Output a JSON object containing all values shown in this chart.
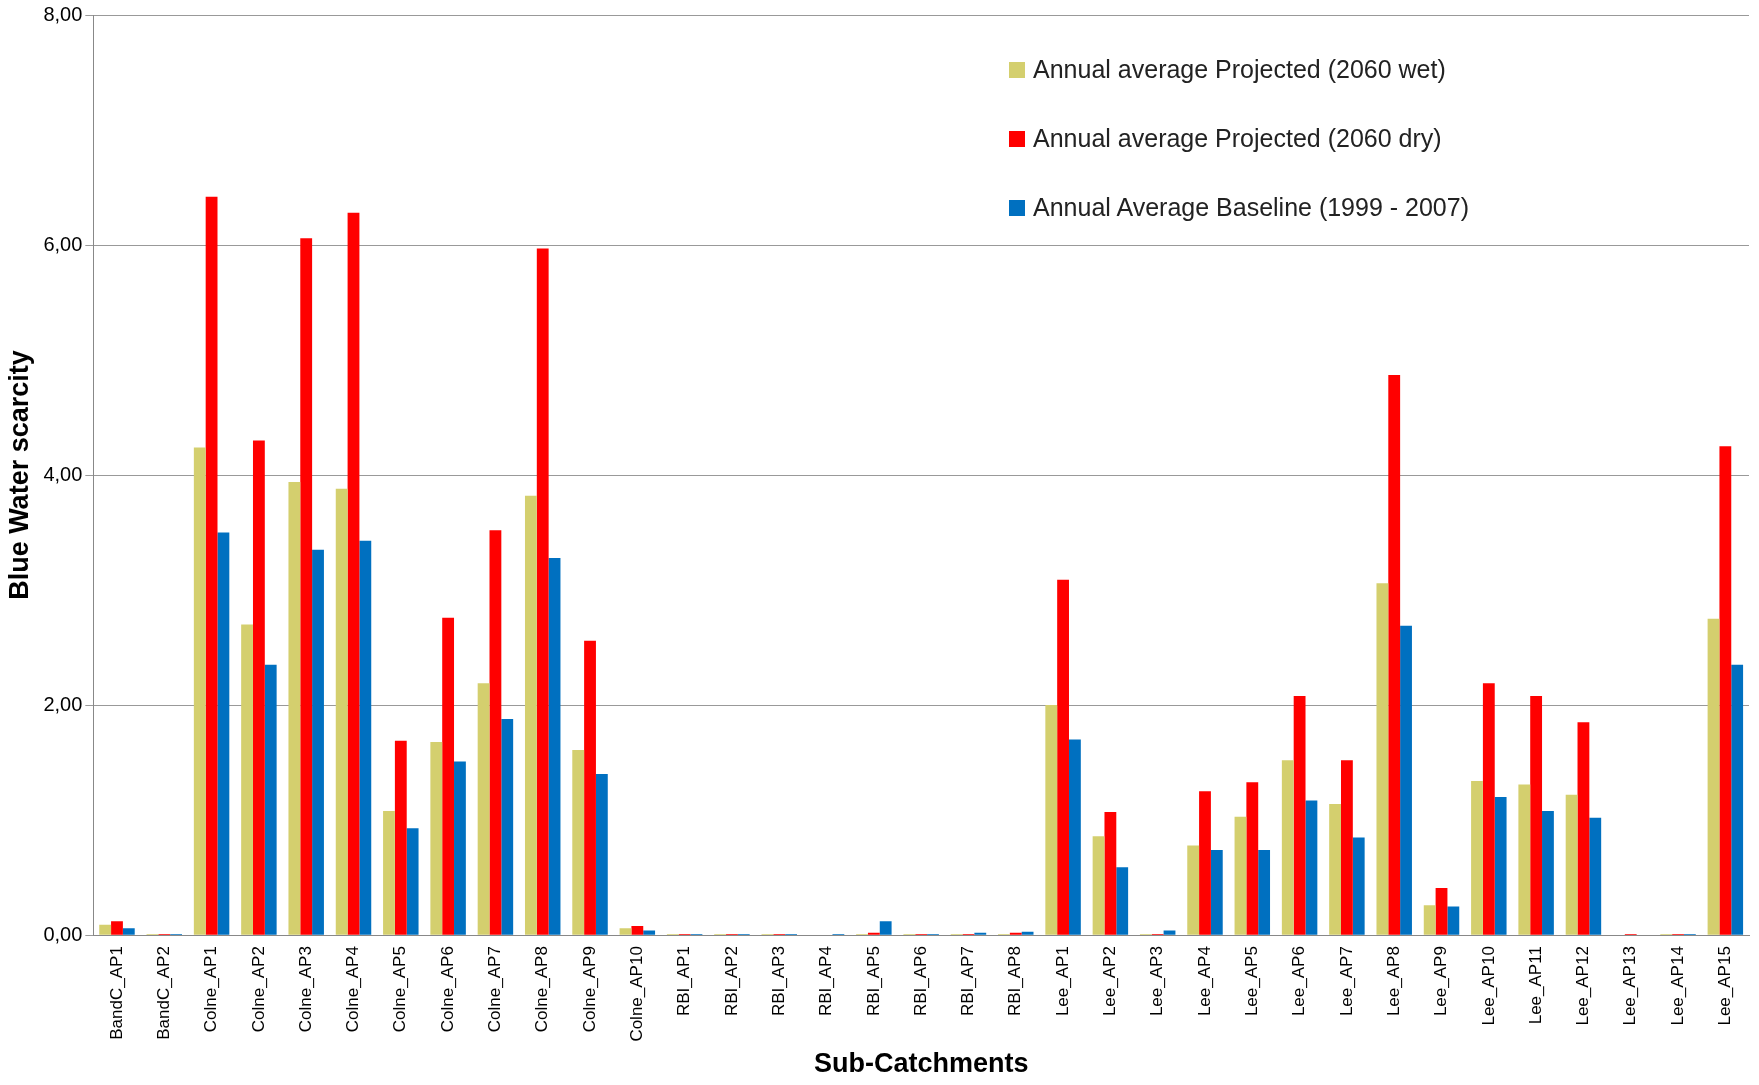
{
  "chart_data": {
    "type": "bar",
    "xlabel": "Sub-Catchments",
    "ylabel": "Blue Water scarcity",
    "categories": [
      "BandC_AP1",
      "BandC_AP2",
      "Colne_AP1",
      "Colne_AP2",
      "Colne_AP3",
      "Colne_AP4",
      "Colne_AP5",
      "Colne_AP6",
      "Colne_AP7",
      "Colne_AP8",
      "Colne_AP9",
      "Colne_AP10",
      "RBI_AP1",
      "RBI_AP2",
      "RBI_AP3",
      "RBI_AP4",
      "RBI_AP5",
      "RBI_AP6",
      "RBI_AP7",
      "RBI_AP8",
      "Lee_AP1",
      "Lee_AP2",
      "Lee_AP3",
      "Lee_AP4",
      "Lee_AP5",
      "Lee_AP6",
      "Lee_AP7",
      "Lee_AP8",
      "Lee_AP9",
      "Lee_AP10",
      "Lee_AP11",
      "Lee_AP12",
      "Lee_AP13",
      "Lee_AP14",
      "Lee_AP15"
    ],
    "series": [
      {
        "name": "Annual average Projected (2060 wet)",
        "color": "#d4cf6e",
        "values": [
          0.09,
          0.01,
          4.24,
          2.7,
          3.94,
          3.88,
          1.08,
          1.68,
          2.19,
          3.82,
          1.61,
          0.06,
          0.01,
          0.01,
          0.01,
          0,
          0.01,
          0.01,
          0.01,
          0.01,
          2.0,
          0.86,
          0.01,
          0.78,
          1.03,
          1.52,
          1.14,
          3.06,
          0.26,
          1.34,
          1.31,
          1.22,
          0,
          0.01,
          2.75
        ]
      },
      {
        "name": "Annual average Projected (2060 dry)",
        "color": "#ff0000",
        "values": [
          0.12,
          0.01,
          6.42,
          4.3,
          6.06,
          6.28,
          1.69,
          2.76,
          3.52,
          5.97,
          2.56,
          0.08,
          0.01,
          0.01,
          0.01,
          0,
          0.02,
          0.01,
          0.01,
          0.02,
          3.09,
          1.07,
          0.01,
          1.25,
          1.33,
          2.08,
          1.52,
          4.87,
          0.41,
          2.19,
          2.08,
          1.85,
          0.01,
          0.01,
          4.25
        ]
      },
      {
        "name": "Annual Average Baseline (1999 - 2007)",
        "color": "#0070c0",
        "values": [
          0.06,
          0.01,
          3.5,
          2.35,
          3.35,
          3.43,
          0.93,
          1.51,
          1.88,
          3.28,
          1.4,
          0.04,
          0.01,
          0.01,
          0.01,
          0.01,
          0.12,
          0.01,
          0.02,
          0.03,
          1.7,
          0.59,
          0.04,
          0.74,
          0.74,
          1.17,
          0.85,
          2.69,
          0.25,
          1.2,
          1.08,
          1.02,
          0,
          0.01,
          2.35
        ]
      }
    ],
    "ylim": [
      0,
      8
    ],
    "yticks": [
      {
        "value": 0,
        "label": "0,00"
      },
      {
        "value": 2,
        "label": "2,00"
      },
      {
        "value": 4,
        "label": "4,00"
      },
      {
        "value": 6,
        "label": "6,00"
      },
      {
        "value": 8,
        "label": "8,00"
      }
    ],
    "grid": "y",
    "legend": "top right"
  }
}
